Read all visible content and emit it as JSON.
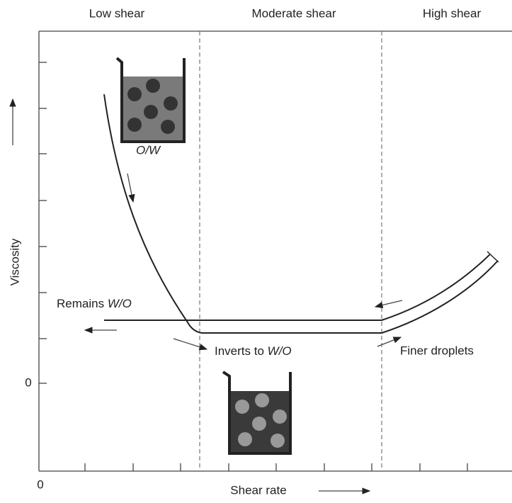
{
  "regions": [
    "Low shear",
    "Moderate shear",
    "High shear"
  ],
  "axes": {
    "y_label": "Viscosity",
    "x_label": "Shear rate",
    "y_origin": "0",
    "x_origin": "0"
  },
  "annotations": {
    "ow": "O/W",
    "remains": {
      "text": "Remains",
      "phase": "W/O"
    },
    "inverts": {
      "text": "Inverts to",
      "phase": "W/O"
    },
    "finer": "Finer droplets"
  }
}
